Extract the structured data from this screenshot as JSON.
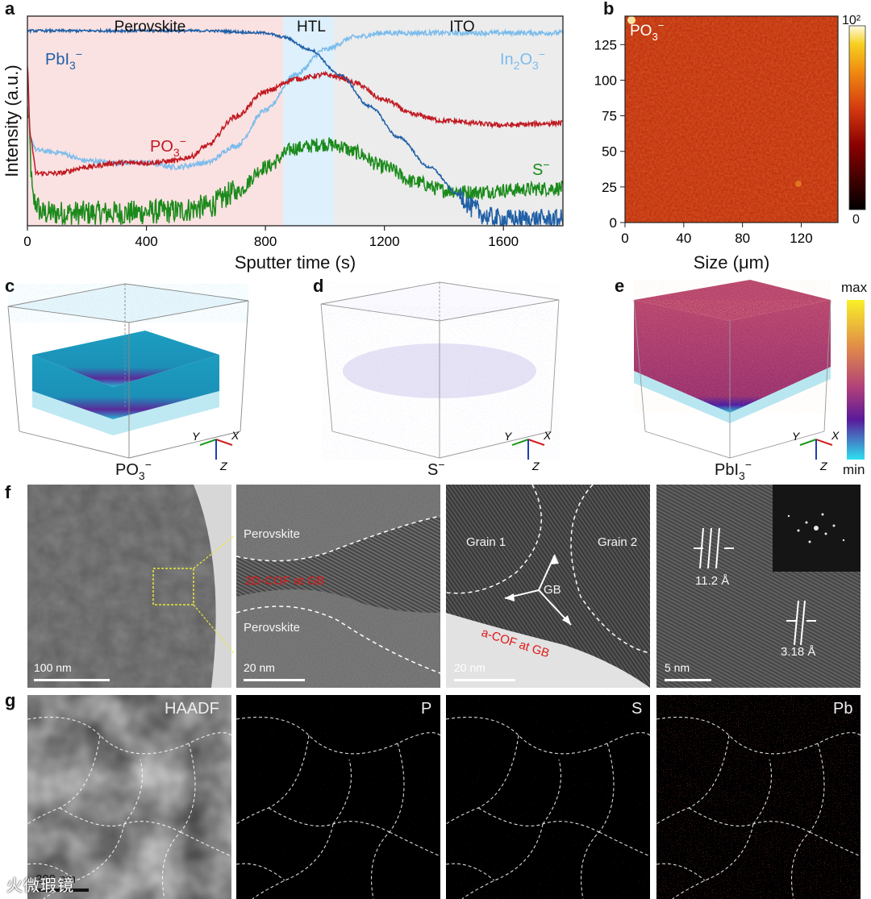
{
  "panel_labels": {
    "a": "a",
    "b": "b",
    "c": "c",
    "d": "d",
    "e": "e",
    "f": "f",
    "g": "g"
  },
  "panel_a": {
    "xlabel": "Sputter time (s)",
    "ylabel": "Intensity (a.u.)",
    "region_labels": [
      "Perovskite",
      "HTL",
      "ITO"
    ],
    "series_labels": {
      "pbi3": "PbI3⁻",
      "in2o3": "In2O3⁻",
      "po3": "PO3⁻",
      "s": "S⁻"
    },
    "colors": {
      "pbi3": "#1f5fa6",
      "in2o3": "#7bbcec",
      "po3": "#c01a22",
      "s": "#1b8a1b",
      "perovskite_bg": "#fbe2e2",
      "htl_bg": "#ddf0fb",
      "ito_bg": "#ececec"
    }
  },
  "panel_b": {
    "title": "PO3⁻",
    "xlabel": "Size (μm)",
    "colorbar_top": "10²",
    "colorbar_bottom": "0"
  },
  "panel_3d": {
    "c_label": "PO3⁻",
    "d_label": "S⁻",
    "e_label": "PbI3⁻",
    "axis_x": "X",
    "axis_y": "Y",
    "axis_z": "Z",
    "colorbar_max": "max",
    "colorbar_min": "min"
  },
  "panel_f": {
    "img1_scale": "100 nm",
    "img2_scale": "20 nm",
    "img2_top": "Perovskite",
    "img2_mid": "2D-COF at GB",
    "img2_bottom": "Perovskite",
    "img3_scale": "20 nm",
    "img3_grain1": "Grain 1",
    "img3_grain2": "Grain 2",
    "img3_gb": "GB",
    "img3_red": "a-COF at GB",
    "img4_scale": "5 nm",
    "img4_d1": "11.2 Å",
    "img4_d2": "3.18 Å"
  },
  "panel_g": {
    "labels": [
      "HAADF",
      "P",
      "S",
      "Pb"
    ],
    "scale": "200 nm"
  },
  "watermark": "火微瑕镜",
  "chart_data": [
    {
      "type": "line",
      "panel": "a",
      "xlabel": "Sputter time (s)",
      "ylabel": "Intensity (a.u.)",
      "xlim": [
        0,
        1800
      ],
      "x_ticks": [
        0,
        400,
        800,
        1200,
        1600
      ],
      "regions": [
        {
          "name": "Perovskite",
          "from": 0,
          "to": 860
        },
        {
          "name": "HTL",
          "from": 860,
          "to": 1030
        },
        {
          "name": "ITO",
          "from": 1030,
          "to": 1800
        }
      ],
      "series": [
        {
          "name": "PbI3⁻",
          "x": [
            0,
            200,
            400,
            600,
            800,
            860,
            950,
            1050,
            1150,
            1250,
            1350,
            1450,
            1500,
            1550,
            1600,
            1700,
            1800
          ],
          "y": [
            0.93,
            0.93,
            0.93,
            0.93,
            0.92,
            0.9,
            0.84,
            0.72,
            0.57,
            0.42,
            0.28,
            0.15,
            0.08,
            0.04,
            0.03,
            0.03,
            0.03
          ]
        },
        {
          "name": "In2O3⁻",
          "x": [
            0,
            10,
            30,
            100,
            200,
            300,
            400,
            500,
            600,
            700,
            800,
            900,
            1000,
            1100,
            1200,
            1300,
            1400,
            1600,
            1800
          ],
          "y": [
            0.72,
            0.42,
            0.36,
            0.35,
            0.31,
            0.3,
            0.3,
            0.28,
            0.3,
            0.38,
            0.55,
            0.72,
            0.84,
            0.9,
            0.92,
            0.92,
            0.92,
            0.92,
            0.92
          ]
        },
        {
          "name": "PO3⁻",
          "x": [
            0,
            10,
            30,
            100,
            200,
            300,
            400,
            500,
            550,
            600,
            700,
            800,
            900,
            1000,
            1050,
            1100,
            1200,
            1300,
            1400,
            1600,
            1800
          ],
          "y": [
            0.75,
            0.42,
            0.25,
            0.25,
            0.28,
            0.3,
            0.3,
            0.31,
            0.33,
            0.38,
            0.52,
            0.64,
            0.7,
            0.72,
            0.71,
            0.68,
            0.6,
            0.53,
            0.5,
            0.48,
            0.49
          ]
        },
        {
          "name": "S⁻",
          "x": [
            0,
            20,
            50,
            100,
            300,
            500,
            600,
            700,
            800,
            900,
            1000,
            1050,
            1100,
            1200,
            1300,
            1400,
            1500,
            1600,
            1800
          ],
          "y": [
            0.55,
            0.12,
            0.06,
            0.06,
            0.06,
            0.07,
            0.09,
            0.16,
            0.28,
            0.37,
            0.39,
            0.38,
            0.35,
            0.28,
            0.21,
            0.17,
            0.16,
            0.17,
            0.18
          ]
        }
      ]
    },
    {
      "type": "heatmap",
      "panel": "b",
      "title": "PO3⁻",
      "xlabel": "Size (μm)",
      "x_ticks": [
        0,
        40,
        80,
        120
      ],
      "y_ticks": [
        0,
        25,
        50,
        75,
        100,
        125
      ],
      "xlim": [
        0,
        145
      ],
      "ylim": [
        0,
        145
      ],
      "colorbar_range": [
        "0",
        "10²"
      ]
    }
  ]
}
